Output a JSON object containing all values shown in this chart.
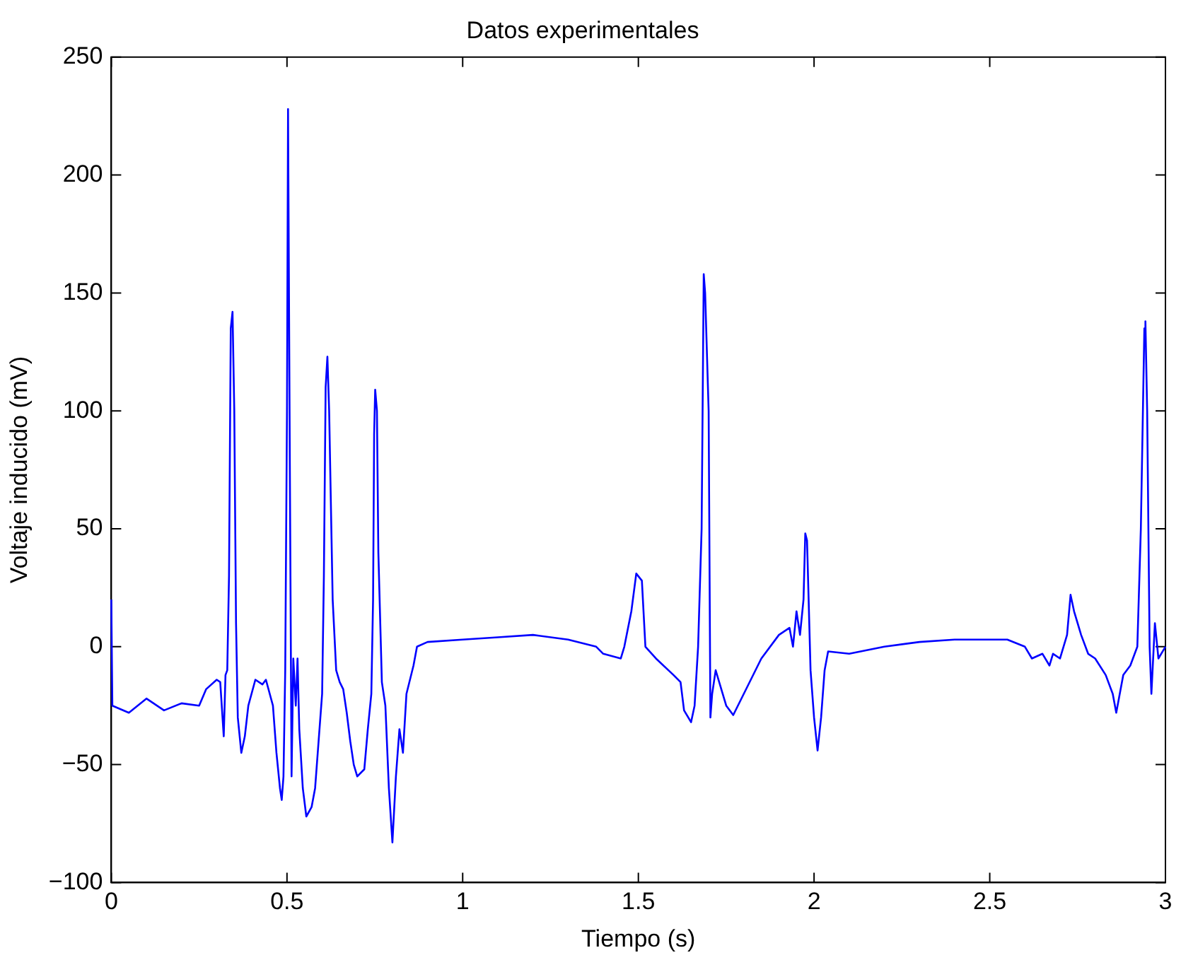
{
  "chart_data": {
    "type": "line",
    "title": "Datos experimentales",
    "xlabel": "Tiempo (s)",
    "ylabel": "Voltaje inducido (mV)",
    "x": [
      0,
      0.003,
      0.05,
      0.1,
      0.15,
      0.2,
      0.25,
      0.27,
      0.3,
      0.31,
      0.32,
      0.325,
      0.33,
      0.335,
      0.34,
      0.345,
      0.35,
      0.355,
      0.36,
      0.37,
      0.38,
      0.39,
      0.41,
      0.43,
      0.44,
      0.46,
      0.47,
      0.48,
      0.485,
      0.49,
      0.495,
      0.5,
      0.503,
      0.508,
      0.513,
      0.518,
      0.525,
      0.53,
      0.535,
      0.545,
      0.555,
      0.57,
      0.58,
      0.59,
      0.6,
      0.605,
      0.61,
      0.615,
      0.62,
      0.63,
      0.64,
      0.65,
      0.66,
      0.67,
      0.68,
      0.69,
      0.7,
      0.72,
      0.73,
      0.74,
      0.745,
      0.748,
      0.751,
      0.756,
      0.76,
      0.77,
      0.78,
      0.79,
      0.8,
      0.81,
      0.82,
      0.83,
      0.84,
      0.86,
      0.87,
      0.9,
      1.0,
      1.1,
      1.2,
      1.3,
      1.38,
      1.4,
      1.45,
      1.46,
      1.48,
      1.494,
      1.51,
      1.52,
      1.55,
      1.6,
      1.62,
      1.63,
      1.65,
      1.66,
      1.67,
      1.68,
      1.686,
      1.69,
      1.7,
      1.705,
      1.71,
      1.72,
      1.73,
      1.75,
      1.77,
      1.8,
      1.85,
      1.9,
      1.93,
      1.94,
      1.95,
      1.96,
      1.97,
      1.975,
      1.98,
      1.99,
      2.0,
      2.01,
      2.02,
      2.03,
      2.04,
      2.1,
      2.2,
      2.3,
      2.4,
      2.5,
      2.55,
      2.6,
      2.62,
      2.65,
      2.67,
      2.68,
      2.7,
      2.72,
      2.73,
      2.74,
      2.76,
      2.78,
      2.8,
      2.83,
      2.85,
      2.86,
      2.87,
      2.88,
      2.9,
      2.92,
      2.93,
      2.94,
      2.943,
      2.948,
      2.955,
      2.96,
      2.97,
      2.98,
      3.0
    ],
    "series": [
      {
        "color": "#0000ff",
        "values": [
          20,
          -25,
          -28,
          -22,
          -27,
          -24,
          -25,
          -18,
          -14,
          -15,
          -38,
          -12,
          -10,
          30,
          135,
          142,
          100,
          10,
          -30,
          -45,
          -38,
          -25,
          -14,
          -16,
          -14,
          -25,
          -45,
          -60,
          -65,
          -55,
          -10,
          100,
          228,
          80,
          -55,
          -5,
          -25,
          -5,
          -35,
          -60,
          -72,
          -68,
          -60,
          -40,
          -20,
          30,
          110,
          123,
          100,
          20,
          -10,
          -15,
          -18,
          -28,
          -40,
          -50,
          -55,
          -52,
          -35,
          -20,
          20,
          90,
          109,
          100,
          40,
          -15,
          -25,
          -60,
          -83,
          -55,
          -35,
          -45,
          -20,
          -8,
          0,
          2,
          3,
          4,
          5,
          3,
          0,
          -3,
          -5,
          0,
          15,
          31,
          28,
          0,
          -5,
          -12,
          -15,
          -27,
          -32,
          -25,
          0,
          50,
          158,
          150,
          100,
          -30,
          -20,
          -10,
          -15,
          -25,
          -29,
          -20,
          -5,
          5,
          8,
          0,
          15,
          5,
          20,
          48,
          45,
          -10,
          -30,
          -44,
          -30,
          -10,
          -2,
          -3,
          0,
          2,
          3,
          3,
          3,
          0,
          -5,
          -3,
          -8,
          -3,
          -5,
          5,
          22,
          15,
          5,
          -3,
          -5,
          -12,
          -20,
          -28,
          -20,
          -12,
          -8,
          0,
          50,
          135,
          138,
          100,
          0,
          -20,
          10,
          -5,
          0
        ]
      }
    ],
    "xlim": [
      0,
      3
    ],
    "xticks": [
      0,
      0.5,
      1,
      1.5,
      2,
      2.5,
      3
    ],
    "ylim": [
      -100,
      250
    ],
    "yticks": [
      {
        "value": -100,
        "label": "−100"
      },
      {
        "value": -50,
        "label": "−50"
      },
      0,
      50,
      100,
      150,
      200,
      250
    ],
    "grid": false,
    "legend": false,
    "marker": "none",
    "line_style": "solid"
  }
}
